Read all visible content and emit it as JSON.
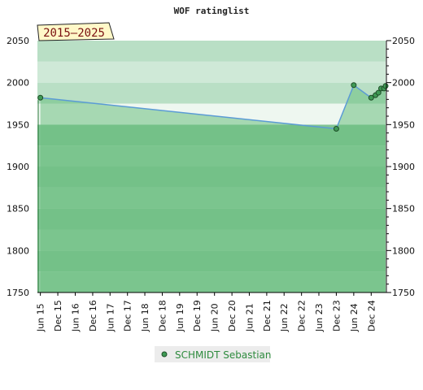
{
  "chart_data": {
    "type": "line",
    "title": "WOF ratinglist",
    "period_badge": "2015—2025",
    "xlabel": "",
    "ylabel": "",
    "x_range": [
      "2015-05-01",
      "2025-05-01"
    ],
    "ylim": [
      1750,
      2050
    ],
    "y_ticks": [
      1750,
      1800,
      1850,
      1900,
      1950,
      2000,
      2050
    ],
    "x_ticks": [
      {
        "date": "2015-06-01",
        "label": "Jun 15"
      },
      {
        "date": "2015-12-01",
        "label": "Dec 15"
      },
      {
        "date": "2016-06-01",
        "label": "Jun 16"
      },
      {
        "date": "2016-12-01",
        "label": "Dec 16"
      },
      {
        "date": "2017-06-01",
        "label": "Jun 17"
      },
      {
        "date": "2017-12-01",
        "label": "Dec 17"
      },
      {
        "date": "2018-06-01",
        "label": "Jun 18"
      },
      {
        "date": "2018-12-01",
        "label": "Dec 18"
      },
      {
        "date": "2019-06-01",
        "label": "Jun 19"
      },
      {
        "date": "2019-12-01",
        "label": "Dec 19"
      },
      {
        "date": "2020-06-01",
        "label": "Jun 20"
      },
      {
        "date": "2020-12-01",
        "label": "Dec 20"
      },
      {
        "date": "2021-06-01",
        "label": "Jun 21"
      },
      {
        "date": "2021-12-01",
        "label": "Dec 21"
      },
      {
        "date": "2022-06-01",
        "label": "Jun 22"
      },
      {
        "date": "2022-12-01",
        "label": "Dec 22"
      },
      {
        "date": "2023-06-01",
        "label": "Jun 23"
      },
      {
        "date": "2023-12-01",
        "label": "Dec 23"
      },
      {
        "date": "2024-06-01",
        "label": "Jun 24"
      },
      {
        "date": "2024-12-01",
        "label": "Dec 24"
      }
    ],
    "series": [
      {
        "name": "SCHMIDT Sebastian",
        "points": [
          {
            "x": "2015-06-01",
            "y": 1982
          },
          {
            "x": "2023-12-01",
            "y": 1945
          },
          {
            "x": "2024-06-01",
            "y": 1997
          },
          {
            "x": "2024-12-01",
            "y": 1982
          },
          {
            "x": "2025-01-15",
            "y": 1985
          },
          {
            "x": "2025-02-15",
            "y": 1988
          },
          {
            "x": "2025-03-15",
            "y": 1993
          },
          {
            "x": "2025-04-15",
            "y": 1993
          },
          {
            "x": "2025-05-01",
            "y": 1996
          }
        ]
      }
    ],
    "grid": true,
    "legend_position": "bottom-center",
    "colors": {
      "line": "#5b9bd5",
      "marker_fill": "#3f9a55",
      "marker_stroke": "#1e4d28",
      "area_fill": "#6cbf7f",
      "band_above": "#cde9d5",
      "band_below": "#86c896",
      "badge_bg": "#fff8c8",
      "legend_bg": "#ececec",
      "legend_text": "#2e8b3e"
    }
  }
}
